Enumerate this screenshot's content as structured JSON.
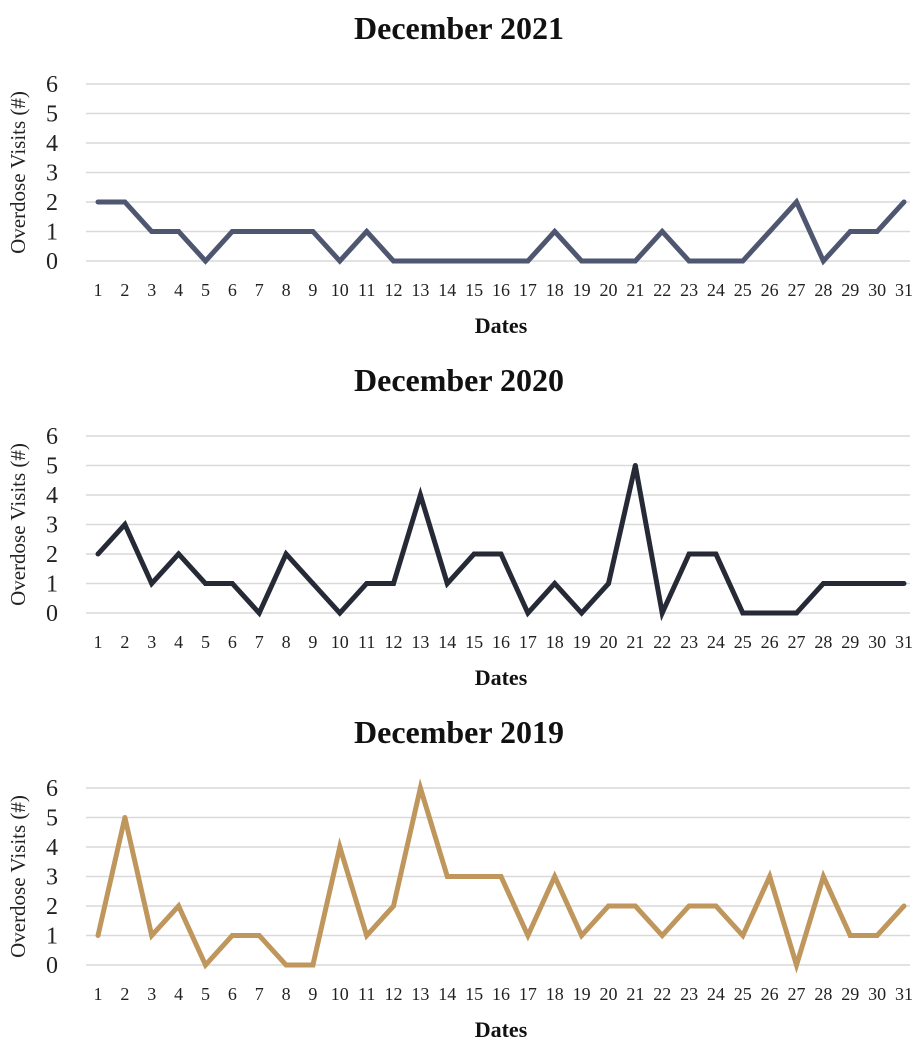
{
  "chart_data": [
    {
      "type": "line",
      "title": "December 2021",
      "xlabel": "Dates",
      "ylabel": "Overdose Visits (#)",
      "ylim": [
        0,
        6
      ],
      "yticks": [
        0,
        1,
        2,
        3,
        4,
        5,
        6
      ],
      "grid": true,
      "color": "#4e5670",
      "categories": [
        "1",
        "2",
        "3",
        "4",
        "5",
        "6",
        "7",
        "8",
        "9",
        "10",
        "11",
        "12",
        "13",
        "14",
        "15",
        "16",
        "17",
        "18",
        "19",
        "20",
        "21",
        "22",
        "23",
        "24",
        "25",
        "26",
        "27",
        "28",
        "29",
        "30",
        "31"
      ],
      "values": [
        2,
        2,
        1,
        1,
        0,
        1,
        1,
        1,
        1,
        0,
        1,
        0,
        0,
        0,
        0,
        0,
        0,
        1,
        0,
        0,
        0,
        1,
        0,
        0,
        0,
        1,
        2,
        0,
        1,
        1,
        2
      ]
    },
    {
      "type": "line",
      "title": "December 2020",
      "xlabel": "Dates",
      "ylabel": "Overdose Visits (#)",
      "ylim": [
        0,
        6
      ],
      "yticks": [
        0,
        1,
        2,
        3,
        4,
        5,
        6
      ],
      "grid": true,
      "color": "#262a36",
      "categories": [
        "1",
        "2",
        "3",
        "4",
        "5",
        "6",
        "7",
        "8",
        "9",
        "10",
        "11",
        "12",
        "13",
        "14",
        "15",
        "16",
        "17",
        "18",
        "19",
        "20",
        "21",
        "22",
        "23",
        "24",
        "25",
        "26",
        "27",
        "28",
        "29",
        "30",
        "31"
      ],
      "values": [
        2,
        3,
        1,
        2,
        1,
        1,
        0,
        2,
        1,
        0,
        1,
        1,
        4,
        1,
        2,
        2,
        0,
        1,
        0,
        1,
        5,
        0,
        2,
        2,
        0,
        0,
        0,
        1,
        1,
        1,
        1
      ]
    },
    {
      "type": "line",
      "title": "December 2019",
      "xlabel": "Dates",
      "ylabel": "Overdose Visits (#)",
      "ylim": [
        0,
        6
      ],
      "yticks": [
        0,
        1,
        2,
        3,
        4,
        5,
        6
      ],
      "grid": true,
      "color": "#bf965c",
      "categories": [
        "1",
        "2",
        "3",
        "4",
        "5",
        "6",
        "7",
        "8",
        "9",
        "10",
        "11",
        "12",
        "13",
        "14",
        "15",
        "16",
        "17",
        "18",
        "19",
        "20",
        "21",
        "22",
        "23",
        "24",
        "25",
        "26",
        "27",
        "28",
        "29",
        "30",
        "31"
      ],
      "values": [
        1,
        5,
        1,
        2,
        0,
        1,
        1,
        0,
        0,
        4,
        1,
        2,
        6,
        3,
        3,
        3,
        1,
        3,
        1,
        2,
        2,
        1,
        2,
        2,
        1,
        3,
        0,
        3,
        1,
        1,
        2
      ]
    }
  ]
}
